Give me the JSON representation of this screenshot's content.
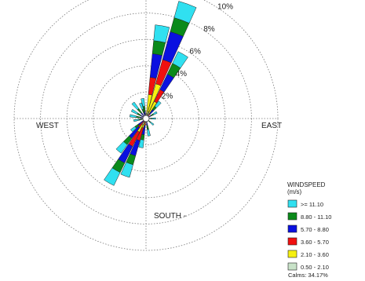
{
  "chart_data": {
    "type": "wind-rose",
    "directions": {
      "north": "",
      "east": "EAST",
      "south": "SOUTH -",
      "west": "WEST"
    },
    "ring_labels": [
      "2%",
      "4%",
      "6%",
      "8%",
      "10%"
    ],
    "ring_values": [
      2,
      4,
      6,
      8,
      10
    ],
    "legend": {
      "title_line1": "WINDSPEED",
      "title_line2": "(m/s)",
      "position": "bottom-right",
      "bins": [
        {
          "label": ">= 11.10",
          "color": "#30e0f0"
        },
        {
          "label": "8.80 - 11.10",
          "color": "#0a8a1a"
        },
        {
          "label": "5.70 - 8.80",
          "color": "#0a10e0"
        },
        {
          "label": "3.60 - 5.70",
          "color": "#f01010"
        },
        {
          "label": "2.10 - 3.60",
          "color": "#f6f010"
        },
        {
          "label": "0.50 - 2.10",
          "color": "#c8e2c8"
        }
      ],
      "calms": "Calms: 34.17%"
    },
    "sector_width_deg": 10,
    "sectors": [
      {
        "dir": 10,
        "values": [
          1.2,
          1.0,
          1.8,
          1.3,
          1.6,
          0.0
        ]
      },
      {
        "dir": 20,
        "values": [
          1.3,
          1.1,
          2.2,
          1.9,
          2.2,
          0.3
        ]
      },
      {
        "dir": 30,
        "values": [
          1.0,
          0.9,
          1.3,
          1.0,
          1.0,
          0.2
        ]
      },
      {
        "dir": 40,
        "values": [
          0.5,
          0.3,
          0.4,
          0.2,
          0.0,
          0.0
        ]
      },
      {
        "dir": 60,
        "values": [
          0.3,
          0.2,
          0.2,
          0.0,
          0.0,
          0.0
        ]
      },
      {
        "dir": 90,
        "values": [
          0.3,
          0.2,
          0.0,
          0.0,
          0.0,
          0.0
        ]
      },
      {
        "dir": 130,
        "values": [
          0.3,
          0.2,
          0.0,
          0.0,
          0.0,
          0.0
        ]
      },
      {
        "dir": 170,
        "values": [
          0.5,
          0.3,
          0.3,
          0.0,
          0.0,
          0.0
        ]
      },
      {
        "dir": 190,
        "values": [
          0.6,
          0.4,
          0.7,
          0.3,
          0.0,
          0.0
        ]
      },
      {
        "dir": 200,
        "values": [
          1.0,
          0.7,
          1.2,
          1.0,
          0.5,
          0.0
        ]
      },
      {
        "dir": 210,
        "values": [
          1.1,
          0.8,
          1.4,
          1.2,
          0.6,
          0.3
        ]
      },
      {
        "dir": 220,
        "values": [
          0.8,
          0.6,
          1.0,
          0.6,
          0.0,
          0.0
        ]
      },
      {
        "dir": 230,
        "values": [
          0.4,
          0.3,
          0.5,
          0.0,
          0.0,
          0.0
        ]
      },
      {
        "dir": 260,
        "values": [
          0.4,
          0.3,
          0.0,
          0.0,
          0.0,
          0.0
        ]
      },
      {
        "dir": 280,
        "values": [
          0.5,
          0.3,
          0.2,
          0.0,
          0.0,
          0.0
        ]
      },
      {
        "dir": 300,
        "values": [
          0.5,
          0.3,
          0.2,
          0.0,
          0.0,
          0.0
        ]
      },
      {
        "dir": 320,
        "values": [
          0.6,
          0.4,
          0.3,
          0.0,
          0.0,
          0.0
        ]
      },
      {
        "dir": 340,
        "values": [
          0.5,
          0.3,
          0.2,
          0.0,
          0.0,
          0.0
        ]
      },
      {
        "dir": 350,
        "values": [
          0.6,
          0.4,
          0.3,
          0.0,
          0.0,
          0.0
        ]
      }
    ]
  }
}
